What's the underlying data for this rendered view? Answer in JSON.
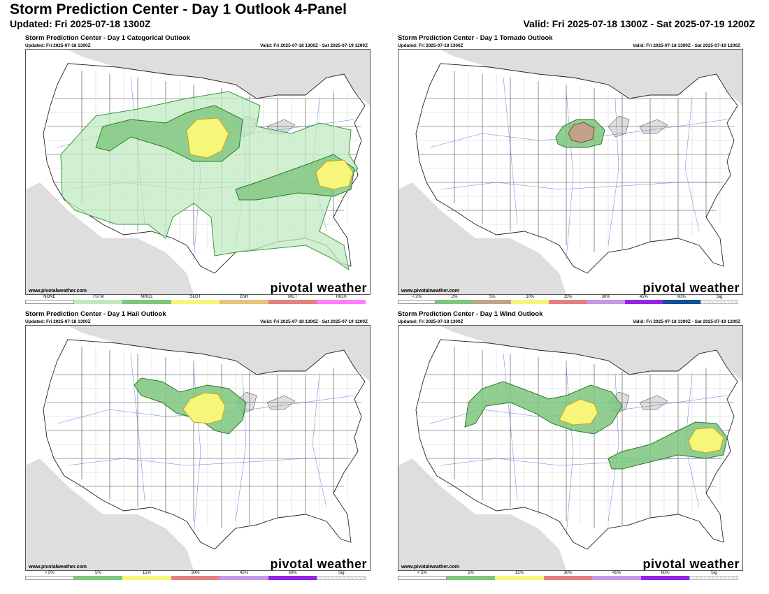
{
  "page": {
    "title": "Storm Prediction Center - Day 1 Outlook 4-Panel",
    "updated": "Updated: Fri 2025-07-18 1300Z",
    "valid": "Valid: Fri 2025-07-18 1300Z - Sat 2025-07-19 1200Z"
  },
  "panels": [
    {
      "title": "Storm Prediction Center - Day 1 Categorical Outlook",
      "updated": "Updated: Fri 2025-07-18 1300Z",
      "valid": "Valid: Fri 2025-07-18 1300Z - Sat 2025-07-19 1200Z",
      "site": "www.pivotalweather.com",
      "brand": "pivotal weather",
      "legend": [
        {
          "label": "NONE",
          "color": "#ffffff"
        },
        {
          "label": "TSTM",
          "color": "#c1e9c1"
        },
        {
          "label": "MRGL",
          "color": "#7ec67e"
        },
        {
          "label": "SLGT",
          "color": "#f6f67a"
        },
        {
          "label": "ENH",
          "color": "#e6c27a"
        },
        {
          "label": "MDT",
          "color": "#e67f7f"
        },
        {
          "label": "HIGH",
          "color": "#ff7fff"
        }
      ]
    },
    {
      "title": "Storm Prediction Center - Day 1 Tornado Outlook",
      "updated": "Updated: Fri 2025-07-18 1300Z",
      "valid": "Valid: Fri 2025-07-18 1300Z - Sat 2025-07-19 1200Z",
      "site": "www.pivotalweather.com",
      "brand": "pivotal weather",
      "legend": [
        {
          "label": "< 2%",
          "color": "#ffffff"
        },
        {
          "label": "2%",
          "color": "#7ec67e"
        },
        {
          "label": "5%",
          "color": "#c3a28a"
        },
        {
          "label": "10%",
          "color": "#f6f67a"
        },
        {
          "label": "15%",
          "color": "#e67f7f"
        },
        {
          "label": "30%",
          "color": "#c49ae6"
        },
        {
          "label": "45%",
          "color": "#9424e8"
        },
        {
          "label": "60%",
          "color": "#124f94"
        },
        {
          "label": "Sig",
          "color": "hatch"
        }
      ]
    },
    {
      "title": "Storm Prediction Center - Day 1 Hail Outlook",
      "updated": "Updated: Fri 2025-07-18 1300Z",
      "valid": "Valid: Fri 2025-07-18 1300Z - Sat 2025-07-19 1200Z",
      "site": "www.pivotalweather.com",
      "brand": "pivotal weather",
      "legend": [
        {
          "label": "< 5%",
          "color": "#ffffff"
        },
        {
          "label": "5%",
          "color": "#7ec67e"
        },
        {
          "label": "15%",
          "color": "#f6f67a"
        },
        {
          "label": "30%",
          "color": "#e67f7f"
        },
        {
          "label": "45%",
          "color": "#c49ae6"
        },
        {
          "label": "60%",
          "color": "#9424e8"
        },
        {
          "label": "Sig",
          "color": "hatch"
        }
      ]
    },
    {
      "title": "Storm Prediction Center - Day 1 Wind Outlook",
      "updated": "Updated: Fri 2025-07-18 1300Z",
      "valid": "Valid: Fri 2025-07-18 1300Z - Sat 2025-07-19 1200Z",
      "site": "www.pivotalweather.com",
      "brand": "pivotal weather",
      "legend": [
        {
          "label": "< 5%",
          "color": "#ffffff"
        },
        {
          "label": "5%",
          "color": "#7ec67e"
        },
        {
          "label": "15%",
          "color": "#f6f67a"
        },
        {
          "label": "30%",
          "color": "#e67f7f"
        },
        {
          "label": "45%",
          "color": "#c49ae6"
        },
        {
          "label": "60%",
          "color": "#9424e8"
        },
        {
          "label": "Sig",
          "color": "hatch"
        }
      ]
    }
  ]
}
